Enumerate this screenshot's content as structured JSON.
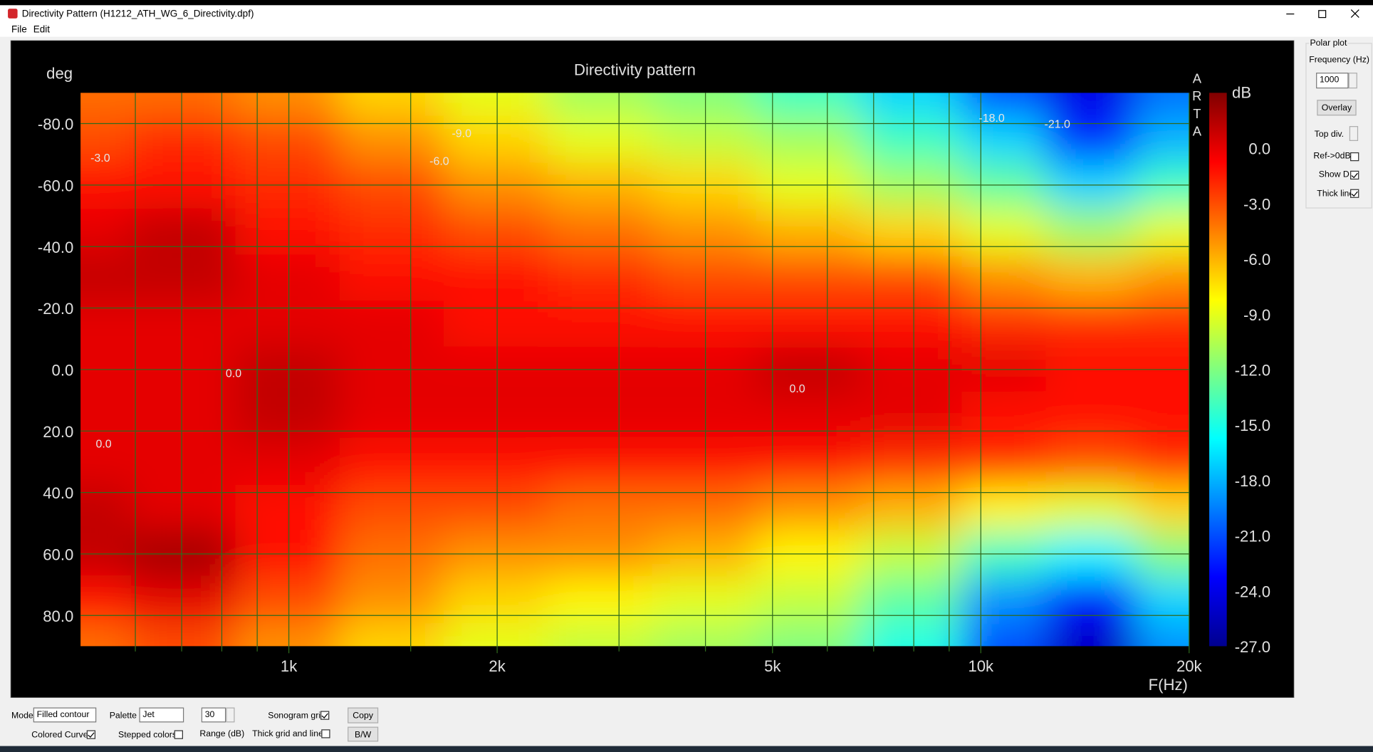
{
  "window": {
    "title": "Directivity Pattern  (H1212_ATH_WG_6_Directivity.dpf)",
    "menu": [
      "File",
      "Edit"
    ]
  },
  "chart_data": {
    "type": "heatmap",
    "title": "Directivity pattern",
    "y_label": "deg",
    "x_label": "F(Hz)",
    "colorbar_label": "dB",
    "watermark": "ARTA",
    "x_scale": "log",
    "xlim": [
      500,
      20000
    ],
    "xticks": [
      {
        "value": 1000,
        "label": "1k"
      },
      {
        "value": 2000,
        "label": "2k"
      },
      {
        "value": 5000,
        "label": "5k"
      },
      {
        "value": 10000,
        "label": "10k"
      },
      {
        "value": 20000,
        "label": "20k"
      }
    ],
    "xminor": [
      600,
      700,
      800,
      900,
      1500,
      3000,
      4000,
      6000,
      7000,
      8000,
      9000
    ],
    "ylim": [
      -90,
      90
    ],
    "y_inverted": true,
    "yticks": [
      {
        "value": -80,
        "label": "-80.0"
      },
      {
        "value": -60,
        "label": "-60.0"
      },
      {
        "value": -40,
        "label": "-40.0"
      },
      {
        "value": -20,
        "label": "-20.0"
      },
      {
        "value": 0,
        "label": "0.0"
      },
      {
        "value": 20,
        "label": "20.0"
      },
      {
        "value": 40,
        "label": "40.0"
      },
      {
        "value": 60,
        "label": "60.0"
      },
      {
        "value": 80,
        "label": "80.0"
      }
    ],
    "clim": [
      -27,
      3
    ],
    "cticks": [
      {
        "value": 0,
        "label": "0.0"
      },
      {
        "value": -3,
        "label": "-3.0"
      },
      {
        "value": -6,
        "label": "-6.0"
      },
      {
        "value": -9,
        "label": "-9.0"
      },
      {
        "value": -12,
        "label": "-12.0"
      },
      {
        "value": -15,
        "label": "-15.0"
      },
      {
        "value": -18,
        "label": "-18.0"
      },
      {
        "value": -21,
        "label": "-21.0"
      },
      {
        "value": -24,
        "label": "-24.0"
      },
      {
        "value": -27,
        "label": "-27.0"
      }
    ],
    "colormap": "jet",
    "grid": true,
    "x": [
      500,
      700,
      1000,
      1400,
      2000,
      2800,
      4000,
      5600,
      8000,
      11000,
      14000,
      20000
    ],
    "y": [
      -90,
      -75,
      -60,
      -45,
      -30,
      -15,
      0,
      15,
      30,
      45,
      60,
      75,
      90
    ],
    "values": [
      [
        -4,
        -4,
        -5,
        -7,
        -9,
        -11,
        -12,
        -14,
        -17,
        -21,
        -24,
        -20
      ],
      [
        -3,
        -2,
        -3,
        -5,
        -7,
        -9,
        -10,
        -11,
        -14,
        -17,
        -22,
        -18
      ],
      [
        -1,
        -1,
        -2,
        -3,
        -5,
        -6,
        -7,
        -9,
        -11,
        -13,
        -17,
        -14
      ],
      [
        0,
        1,
        -1,
        -2,
        -3,
        -4,
        -5,
        -6,
        -7,
        -9,
        -11,
        -9
      ],
      [
        1,
        1,
        0,
        -1,
        -1,
        -2,
        -3,
        -3,
        -3,
        -5,
        -6,
        -5
      ],
      [
        0,
        0,
        0,
        0,
        -1,
        -1,
        -1,
        -1,
        -1,
        -2,
        -2,
        -2
      ],
      [
        0,
        0,
        1,
        0,
        0,
        0,
        0,
        1,
        0,
        0,
        -1,
        -1
      ],
      [
        0,
        0,
        1,
        0,
        0,
        0,
        0,
        0,
        0,
        -1,
        -1,
        -1
      ],
      [
        0,
        0,
        0,
        -1,
        -1,
        -1,
        -1,
        -1,
        -2,
        -2,
        -3,
        -2
      ],
      [
        1,
        0,
        -1,
        -3,
        -3,
        -4,
        -4,
        -5,
        -6,
        -8,
        -9,
        -7
      ],
      [
        1,
        2,
        -1,
        -4,
        -5,
        -5,
        -6,
        -8,
        -10,
        -14,
        -16,
        -12
      ],
      [
        -1,
        0,
        -3,
        -5,
        -7,
        -8,
        -9,
        -10,
        -13,
        -19,
        -23,
        -17
      ],
      [
        -4,
        -3,
        -5,
        -7,
        -9,
        -10,
        -11,
        -12,
        -15,
        -21,
        -25,
        -19
      ]
    ],
    "annotations": [
      {
        "text": "-3.0",
        "x": 534,
        "y": -69
      },
      {
        "text": "-9.0",
        "x": 1777,
        "y": -77
      },
      {
        "text": "-6.0",
        "x": 1650,
        "y": -68
      },
      {
        "text": "0.0",
        "x": 832,
        "y": 1
      },
      {
        "text": "0.0",
        "x": 540,
        "y": 24
      },
      {
        "text": "0.0",
        "x": 5430,
        "y": 6
      },
      {
        "text": "-18.0",
        "x": 10370,
        "y": -82
      },
      {
        "text": "-21.0",
        "x": 12900,
        "y": -80
      }
    ]
  },
  "side_panel": {
    "title": "Polar plot",
    "frequency_label": "Frequency (Hz)",
    "frequency": 1000,
    "overlay": "Overlay",
    "top_div": "Top div.",
    "checkboxes": [
      {
        "label": "Ref->0dB",
        "checked": false
      },
      {
        "label": "Show DI",
        "checked": true
      },
      {
        "label": "Thick line",
        "checked": true
      }
    ]
  },
  "bottom_panel": {
    "mode_label": "Mode",
    "mode": "Filled contour",
    "palette_label": "Palette",
    "palette": "Jet",
    "range": 30,
    "range_label": "Range (dB)",
    "sonogram_grid": {
      "label": "Sonogram grid",
      "checked": true
    },
    "colored_curves": {
      "label": "Colored Curves",
      "checked": true
    },
    "stepped_colors": {
      "label": "Stepped colors",
      "checked": false
    },
    "thick_grid": {
      "label": "Thick grid and  lines",
      "checked": false
    },
    "copy": "Copy",
    "bw": "B/W"
  }
}
